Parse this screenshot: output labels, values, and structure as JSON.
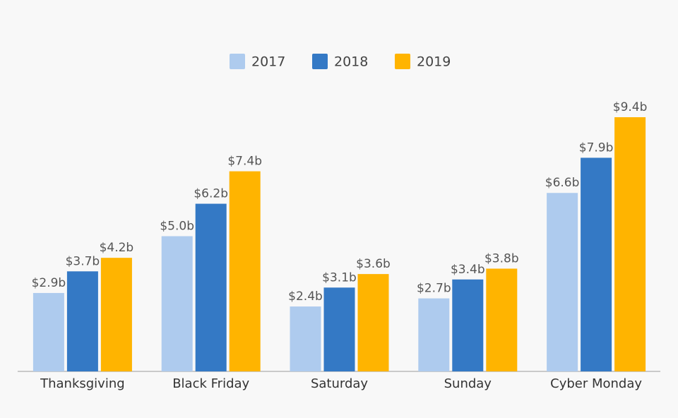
{
  "chart_data": {
    "type": "bar",
    "categories": [
      "Thanksgiving",
      "Black Friday",
      "Saturday",
      "Sunday",
      "Cyber Monday"
    ],
    "series": [
      {
        "name": "2017",
        "color": "#aecbee",
        "values": [
          2.9,
          5.0,
          2.4,
          2.7,
          6.6
        ],
        "value_labels": [
          "$2.9b",
          "$5.0b",
          "$2.4b",
          "$2.7b",
          "$6.6b"
        ]
      },
      {
        "name": "2018",
        "color": "#3479c5",
        "values": [
          3.7,
          6.2,
          3.1,
          3.4,
          7.9
        ],
        "value_labels": [
          "$3.7b",
          "$6.2b",
          "$3.1b",
          "$3.4b",
          "$7.9b"
        ]
      },
      {
        "name": "2019",
        "color": "#ffb400",
        "values": [
          4.2,
          7.4,
          3.6,
          3.8,
          9.4
        ],
        "value_labels": [
          "$4.2b",
          "$7.4b",
          "$3.6b",
          "$3.8b",
          "$9.4b"
        ]
      }
    ],
    "legend": "top"
  }
}
